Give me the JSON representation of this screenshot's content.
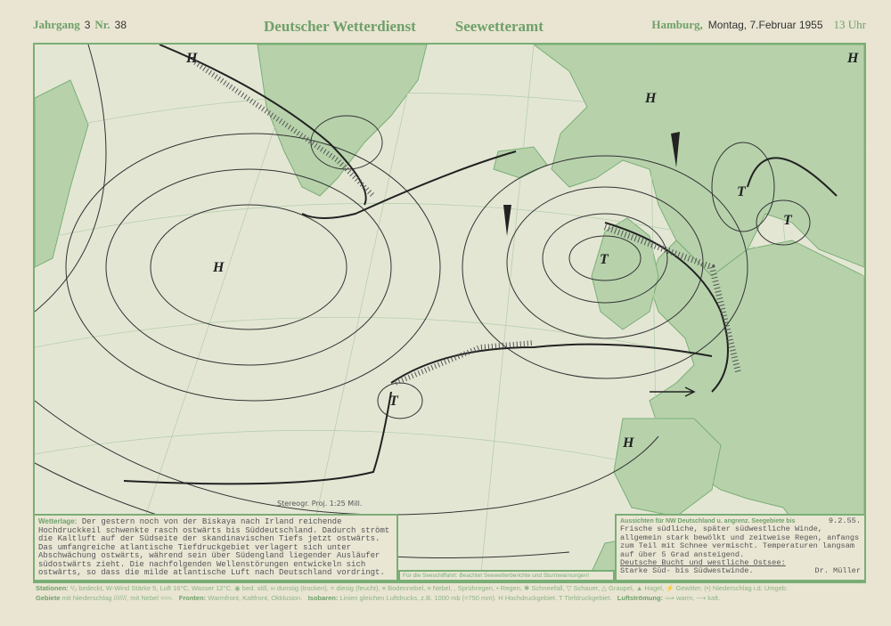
{
  "header": {
    "jahrgang_label": "Jahrgang",
    "jahrgang": "3",
    "nr_label": "Nr.",
    "nr": "38",
    "org": "Deutscher Wetterdienst",
    "office": "Seewetteramt",
    "place": "Hamburg,",
    "date": "Montag, 7.Februar 1955",
    "time": "13 Uhr"
  },
  "map": {
    "pressure_centers": [
      "H",
      "H",
      "H",
      "T",
      "T",
      "T",
      "T",
      "H",
      "H"
    ],
    "projection_note": "Stereogr. Proj. 1:25 Mill.",
    "colors": {
      "land": "#b7d2ab",
      "sea": "#e4e6d4",
      "frame": "#7aae76",
      "isobar": "#333333"
    }
  },
  "wetterlage": {
    "label": "Wetterlage:",
    "text": "Der gestern noch von der Biskaya nach Irland reichende Hochdruckkeil schwenkte rasch ostwärts bis Süddeutschland. Dadurch strömt die Kaltluft auf der Südseite der skandinavischen Tiefs jetzt ostwärts. Das umfangreiche atlantische Tiefdruckgebiet verlagert sich unter Abschwächung ostwärts, während sein über Südengland liegender Ausläufer südostwärts zieht. Die nachfolgenden Wellenstörungen entwickeln sich ostwärts, so dass die milde atlantische Luft nach Deutschland vordringt."
  },
  "seafaring_note": "Für die Seeschiffahrt: Beachtet Seewetterberichte und Sturmwarnungen!",
  "aussichten": {
    "label": "Aussichten für NW Deutschland u. angrenz. Seegebiete bis",
    "date": "9.2.55.",
    "text": "Frische südliche, später südwestliche Winde, allgemein stark bewölkt und zeitweise Regen, anfangs zum Teil mit Schnee vermischt. Temperaturen langsam auf über 5 Grad ansteigend.",
    "subheading": "Deutsche Bucht und westliche Ostsee:",
    "subtext": "Starke Süd- bis Südwestwinde.",
    "signature": "Dr. Müller"
  },
  "legend": {
    "line1_label": "Stationen:",
    "line1": "¹/₂ bedeckt, W-Wind Stärke 5, Luft 16°C, Wasser 12°C. ◉ bed. still, ∞ dunstig (trocken), = diesig (feucht), ≡ Bodennebel, ≡ Nebel, , Sprühregen, • Regen, ✱ Schneefall, ▽ Schauer, △ Graupel, ▲ Hagel, ⚡ Gewitter, (•) Niederschlag i.d. Umgeb.",
    "line2_label": "Gebiete",
    "line2": "mit Niederschlag ///////, mit Nebel ≈≈≈.",
    "fronts_label": "Fronten:",
    "fronts": "Warmfront, Kaltfront, Okklusion.",
    "isobars_label": "Isobaren:",
    "isobars": "Linien gleichen Luftdrucks, z.B. 1000 mb (=750 mm). H Hochdruckgebiet. T Tiefdruckgebiet.",
    "flow_label": "Luftströmung:",
    "flow": "⟹ warm, ⟶ kalt."
  }
}
